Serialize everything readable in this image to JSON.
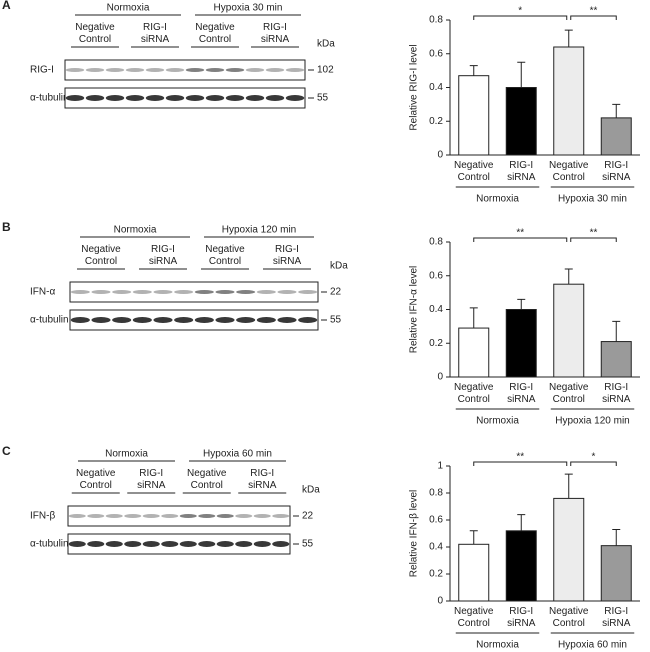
{
  "panels": [
    {
      "letter": "A",
      "blot": {
        "groups": [
          "Normoxia",
          "Hypoxia 30 min"
        ],
        "lanes": [
          "Negative Control",
          "RIG-I siRNA",
          "Negative Control",
          "RIG-I siRNA"
        ],
        "unit": "kDa",
        "rows": [
          {
            "name": "RIG-I",
            "mw": 102
          },
          {
            "name": "α-tubulin",
            "mw": 55
          }
        ]
      }
    },
    {
      "letter": "B",
      "blot": {
        "groups": [
          "Normoxia",
          "Hypoxia 120 min"
        ],
        "lanes": [
          "Negative Control",
          "RIG-I siRNA",
          "Negative Control",
          "RIG-I siRNA"
        ],
        "unit": "kDa",
        "rows": [
          {
            "name": "IFN-α",
            "mw": 22
          },
          {
            "name": "α-tubulin",
            "mw": 55
          }
        ]
      }
    },
    {
      "letter": "C",
      "blot": {
        "groups": [
          "Normoxia",
          "Hypoxia 60 min"
        ],
        "lanes": [
          "Negative Control",
          "RIG-I siRNA",
          "Negative Control",
          "RIG-I siRNA"
        ],
        "unit": "kDa",
        "rows": [
          {
            "name": "IFN-β",
            "mw": 22
          },
          {
            "name": "α-tubulin",
            "mw": 55
          }
        ]
      }
    }
  ],
  "chart_data": [
    {
      "type": "bar",
      "ylabel": "Relative RIG-I level",
      "categories": [
        "Negative Control",
        "RIG-I siRNA",
        "Negative Control",
        "RIG-I siRNA"
      ],
      "groups": [
        "Normoxia",
        "Hypoxia 30 min"
      ],
      "values": [
        0.47,
        0.4,
        0.64,
        0.22
      ],
      "errors": [
        0.06,
        0.15,
        0.1,
        0.08
      ],
      "colors": [
        "#ffffff",
        "#000000",
        "#ececec",
        "#9a9a9a"
      ],
      "ylim": [
        0,
        0.8
      ],
      "yticks": [
        0,
        0.2,
        0.4,
        0.6,
        0.8
      ],
      "annotations": [
        "*",
        "**"
      ]
    },
    {
      "type": "bar",
      "ylabel": "Relative IFN-α level",
      "categories": [
        "Negative Control",
        "RIG-I siRNA",
        "Negative Control",
        "RIG-I siRNA"
      ],
      "groups": [
        "Normoxia",
        "Hypoxia 120 min"
      ],
      "values": [
        0.29,
        0.4,
        0.55,
        0.21
      ],
      "errors": [
        0.12,
        0.06,
        0.09,
        0.12
      ],
      "colors": [
        "#ffffff",
        "#000000",
        "#ececec",
        "#9a9a9a"
      ],
      "ylim": [
        0,
        0.8
      ],
      "yticks": [
        0,
        0.2,
        0.4,
        0.6,
        0.8
      ],
      "annotations": [
        "**",
        "**"
      ]
    },
    {
      "type": "bar",
      "ylabel": "Relative IFN-β level",
      "categories": [
        "Negative Control",
        "RIG-I siRNA",
        "Negative Control",
        "RIG-I siRNA"
      ],
      "groups": [
        "Normoxia",
        "Hypoxia 60 min"
      ],
      "values": [
        0.42,
        0.52,
        0.76,
        0.41
      ],
      "errors": [
        0.1,
        0.12,
        0.18,
        0.12
      ],
      "colors": [
        "#ffffff",
        "#000000",
        "#ececec",
        "#9a9a9a"
      ],
      "ylim": [
        0,
        1
      ],
      "yticks": [
        0,
        0.2,
        0.4,
        0.6,
        0.8,
        1
      ],
      "annotations": [
        "**",
        "*"
      ]
    }
  ]
}
